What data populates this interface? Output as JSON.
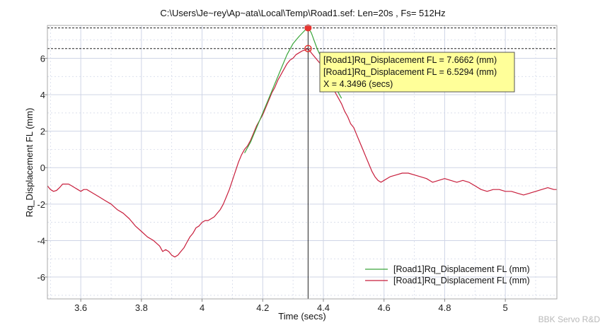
{
  "chart_data": {
    "type": "line",
    "title": "C:\\Users\\Je~rey\\Ap~ata\\Local\\Temp\\Road1.sef: Len=20s , Fs= 512Hz",
    "xlabel": "Time (secs)",
    "ylabel": "Rq_Displacement FL (mm)",
    "xlim": [
      3.49,
      5.17
    ],
    "ylim": [
      -7.2,
      7.8
    ],
    "x_ticks": [
      3.6,
      3.8,
      4,
      4.2,
      4.4,
      4.6,
      4.8,
      5
    ],
    "x_tick_labels": [
      "3.6",
      "3.8",
      "4",
      "4.2",
      "4.4",
      "4.6",
      "4.8",
      "5"
    ],
    "y_ticks": [
      -6,
      -4,
      -2,
      0,
      2,
      4,
      6
    ],
    "y_tick_labels": [
      "-6",
      "-4",
      "-2",
      "0",
      "2",
      "4",
      "6"
    ],
    "grid": true,
    "legend_position": "bottom-right",
    "series": [
      {
        "name": "[Road1]Rq_Displacement FL (mm)",
        "color": "#3aa53a",
        "points": [
          [
            4.14,
            0.8
          ],
          [
            4.16,
            1.4
          ],
          [
            4.18,
            2.2
          ],
          [
            4.2,
            3.0
          ],
          [
            4.22,
            3.8
          ],
          [
            4.24,
            4.6
          ],
          [
            4.26,
            5.4
          ],
          [
            4.28,
            6.2
          ],
          [
            4.3,
            6.8
          ],
          [
            4.32,
            7.2
          ],
          [
            4.34,
            7.55
          ],
          [
            4.3496,
            7.6662
          ],
          [
            4.36,
            7.4
          ],
          [
            4.38,
            6.5
          ],
          [
            4.4,
            5.8
          ],
          [
            4.42,
            5.0
          ],
          [
            4.44,
            4.4
          ],
          [
            4.46,
            3.8
          ]
        ]
      },
      {
        "name": "[Road1]Rq_Displacement FL (mm)",
        "color": "#c81e3c",
        "points": [
          [
            3.49,
            -1.0
          ],
          [
            3.5,
            -1.2
          ],
          [
            3.51,
            -1.3
          ],
          [
            3.52,
            -1.25
          ],
          [
            3.53,
            -1.1
          ],
          [
            3.54,
            -0.9
          ],
          [
            3.56,
            -0.9
          ],
          [
            3.57,
            -1.0
          ],
          [
            3.58,
            -1.1
          ],
          [
            3.59,
            -1.2
          ],
          [
            3.6,
            -1.3
          ],
          [
            3.61,
            -1.2
          ],
          [
            3.62,
            -1.2
          ],
          [
            3.64,
            -1.4
          ],
          [
            3.66,
            -1.6
          ],
          [
            3.68,
            -1.8
          ],
          [
            3.7,
            -2.0
          ],
          [
            3.72,
            -2.3
          ],
          [
            3.74,
            -2.5
          ],
          [
            3.76,
            -2.8
          ],
          [
            3.78,
            -3.2
          ],
          [
            3.8,
            -3.5
          ],
          [
            3.82,
            -3.8
          ],
          [
            3.84,
            -4.0
          ],
          [
            3.86,
            -4.3
          ],
          [
            3.87,
            -4.6
          ],
          [
            3.88,
            -4.5
          ],
          [
            3.89,
            -4.6
          ],
          [
            3.9,
            -4.8
          ],
          [
            3.91,
            -4.9
          ],
          [
            3.92,
            -4.8
          ],
          [
            3.93,
            -4.6
          ],
          [
            3.94,
            -4.4
          ],
          [
            3.95,
            -4.1
          ],
          [
            3.96,
            -3.8
          ],
          [
            3.97,
            -3.6
          ],
          [
            3.98,
            -3.3
          ],
          [
            3.99,
            -3.2
          ],
          [
            4.0,
            -3.0
          ],
          [
            4.01,
            -2.9
          ],
          [
            4.02,
            -2.9
          ],
          [
            4.04,
            -2.7
          ],
          [
            4.05,
            -2.5
          ],
          [
            4.06,
            -2.3
          ],
          [
            4.07,
            -2.0
          ],
          [
            4.08,
            -1.6
          ],
          [
            4.09,
            -1.2
          ],
          [
            4.1,
            -0.7
          ],
          [
            4.11,
            -0.2
          ],
          [
            4.12,
            0.3
          ],
          [
            4.13,
            0.7
          ],
          [
            4.14,
            1.0
          ],
          [
            4.15,
            1.2
          ],
          [
            4.16,
            1.5
          ],
          [
            4.17,
            1.9
          ],
          [
            4.18,
            2.3
          ],
          [
            4.19,
            2.6
          ],
          [
            4.2,
            2.9
          ],
          [
            4.21,
            3.3
          ],
          [
            4.22,
            3.7
          ],
          [
            4.23,
            4.1
          ],
          [
            4.24,
            4.4
          ],
          [
            4.25,
            4.8
          ],
          [
            4.26,
            5.1
          ],
          [
            4.27,
            5.4
          ],
          [
            4.28,
            5.7
          ],
          [
            4.29,
            5.9
          ],
          [
            4.3,
            6.0
          ],
          [
            4.31,
            6.2
          ],
          [
            4.32,
            6.3
          ],
          [
            4.33,
            6.4
          ],
          [
            4.34,
            6.45
          ],
          [
            4.3496,
            6.5294
          ],
          [
            4.36,
            6.3
          ],
          [
            4.37,
            6.1
          ],
          [
            4.38,
            5.9
          ],
          [
            4.39,
            5.7
          ],
          [
            4.4,
            5.5
          ],
          [
            4.41,
            5.1
          ],
          [
            4.42,
            4.8
          ],
          [
            4.43,
            4.4
          ],
          [
            4.44,
            4.1
          ],
          [
            4.45,
            3.8
          ],
          [
            4.46,
            3.5
          ],
          [
            4.47,
            3.1
          ],
          [
            4.48,
            2.8
          ],
          [
            4.49,
            2.4
          ],
          [
            4.5,
            2.2
          ],
          [
            4.51,
            1.8
          ],
          [
            4.52,
            1.4
          ],
          [
            4.53,
            1.0
          ],
          [
            4.54,
            0.6
          ],
          [
            4.55,
            0.2
          ],
          [
            4.56,
            -0.2
          ],
          [
            4.57,
            -0.5
          ],
          [
            4.58,
            -0.7
          ],
          [
            4.59,
            -0.8
          ],
          [
            4.6,
            -0.7
          ],
          [
            4.62,
            -0.5
          ],
          [
            4.64,
            -0.4
          ],
          [
            4.66,
            -0.3
          ],
          [
            4.68,
            -0.3
          ],
          [
            4.7,
            -0.4
          ],
          [
            4.72,
            -0.5
          ],
          [
            4.74,
            -0.6
          ],
          [
            4.76,
            -0.8
          ],
          [
            4.78,
            -0.7
          ],
          [
            4.8,
            -0.6
          ],
          [
            4.82,
            -0.7
          ],
          [
            4.84,
            -0.8
          ],
          [
            4.86,
            -0.7
          ],
          [
            4.88,
            -0.8
          ],
          [
            4.9,
            -1.0
          ],
          [
            4.92,
            -1.2
          ],
          [
            4.94,
            -1.3
          ],
          [
            4.96,
            -1.2
          ],
          [
            4.98,
            -1.2
          ],
          [
            5.0,
            -1.3
          ],
          [
            5.02,
            -1.3
          ],
          [
            5.04,
            -1.4
          ],
          [
            5.06,
            -1.5
          ],
          [
            5.08,
            -1.4
          ],
          [
            5.1,
            -1.3
          ],
          [
            5.12,
            -1.2
          ],
          [
            5.14,
            -1.1
          ],
          [
            5.16,
            -1.2
          ],
          [
            5.17,
            -1.2
          ]
        ]
      }
    ],
    "cursor": {
      "x": 4.3496,
      "levels": [
        7.6662,
        6.5294
      ]
    },
    "tooltip": {
      "lines": [
        "[Road1]Rq_Displacement FL = 7.6662 (mm)",
        "[Road1]Rq_Displacement FL = 6.5294 (mm)",
        "X = 4.3496 (secs)"
      ]
    },
    "watermark": "BBK Servo R&D",
    "colors": {
      "grid": "#cfd5e6",
      "tooltip_bg": "#ffff99",
      "marker": "#e8332e"
    }
  }
}
